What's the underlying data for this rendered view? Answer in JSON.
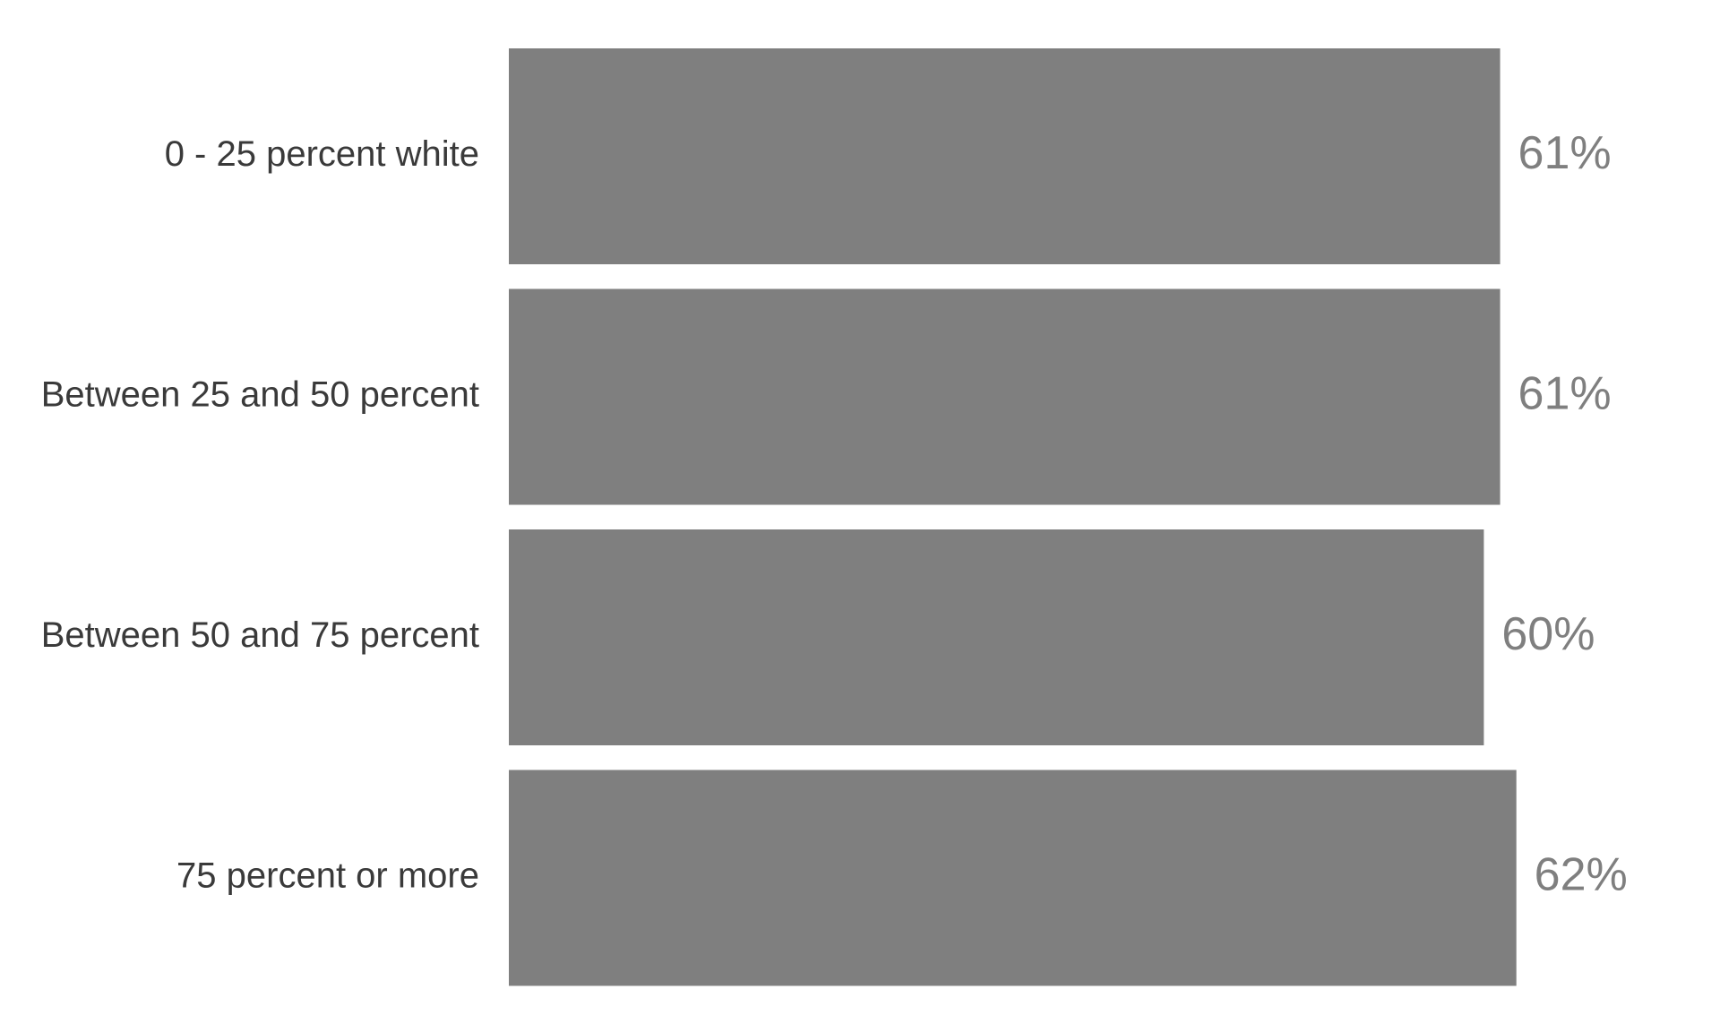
{
  "chart_data": {
    "type": "bar",
    "orientation": "horizontal",
    "categories": [
      "0 - 25 percent white",
      "Between 25 and 50 percent",
      "Between 50 and 75 percent",
      "75 percent or more"
    ],
    "values": [
      61,
      61,
      60,
      62
    ],
    "value_labels": [
      "61%",
      "61%",
      "60%",
      "62%"
    ],
    "unit": "%",
    "title": "",
    "xlabel": "",
    "ylabel": "",
    "xlim": [
      0,
      62
    ],
    "grid": false,
    "legend": "none",
    "colors": {
      "bar": "#7f7f7f",
      "value_label": "#7f7f7f",
      "category_label": "#3a3a3a",
      "background": "#ffffff"
    }
  }
}
